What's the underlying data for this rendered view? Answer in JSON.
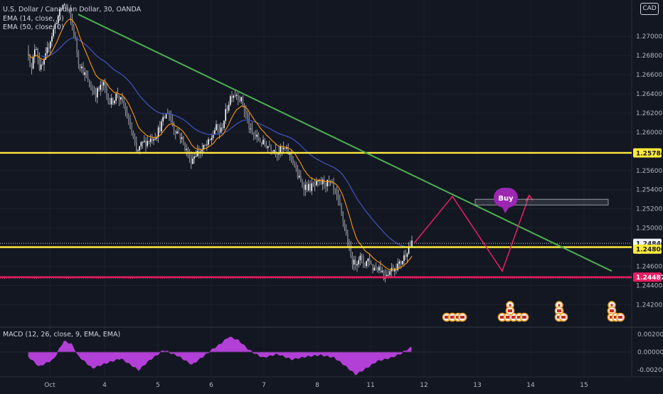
{
  "header": {
    "title": "U.S. Dollar / Canadian Dollar, 30, OANDA",
    "ema14": "EMA (14, close, 0)",
    "ema50": "EMA (50, close, 0)",
    "currency": "CAD"
  },
  "macd_title": "MACD (12, 26, close, 9, EMA, EMA)",
  "chart_data": {
    "type": "candlestick",
    "symbol": "USD/CAD",
    "interval": "30",
    "source": "OANDA",
    "price_axis": {
      "range": [
        1.2395,
        1.2738
      ],
      "ticks": [
        "1.27000",
        "1.26800",
        "1.26600",
        "1.26400",
        "1.26200",
        "1.26000",
        "1.25600",
        "1.25400",
        "1.25200",
        "1.25000",
        "1.24600",
        "1.24400",
        "1.24200"
      ]
    },
    "time_axis": {
      "ticks": [
        "Oct",
        "4",
        "5",
        "6",
        "7",
        "8",
        "11",
        "12",
        "13",
        "14",
        "15"
      ]
    },
    "labels": {
      "current_price": "1.24840",
      "countdown": "14:44",
      "level_upper": "1.25784",
      "level_mid": "1.24800",
      "level_low": "1.24487"
    },
    "levels": [
      {
        "name": "resistance",
        "price": 1.25784,
        "color": "#ffeb3b"
      },
      {
        "name": "support",
        "price": 1.248,
        "color": "#ffeb3b"
      },
      {
        "name": "low-support",
        "price": 1.24487,
        "color": "#e91e63"
      }
    ],
    "last_price": 1.2484,
    "annotation": {
      "text": "Buy",
      "color": "#9c27b0"
    },
    "trendline_color": "#4caf50",
    "projection_color": "#e91e63",
    "ema14_color": "#ff9800",
    "ema50_color": "#3f51b5",
    "macd": {
      "axis_ticks": [
        "0.00200",
        "0.00000",
        "-0.00200"
      ],
      "color": "#b23fd6"
    }
  }
}
